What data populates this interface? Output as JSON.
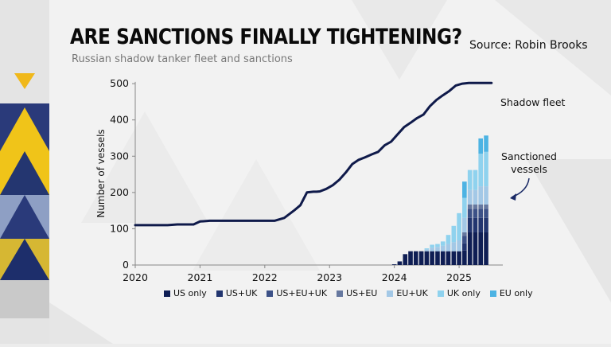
{
  "header": {
    "title": "ARE SANCTIONS FINALLY TIGHTENING?",
    "subtitle": "Russian shadow tanker fleet and sanctions",
    "source": "Source: Robin Brooks"
  },
  "chart_data": {
    "type": "line+stacked-bar",
    "title": "ARE SANCTIONS FINALLY TIGHTENING?",
    "subtitle": "Russian shadow tanker fleet and sanctions",
    "ylabel": "Number of vessels",
    "xlabel": "",
    "ylim": [
      0,
      520
    ],
    "xlim": [
      2020,
      2025.65
    ],
    "y_ticks": [
      "0",
      "100",
      "200",
      "300",
      "400",
      "500"
    ],
    "x_ticks": [
      "2020",
      "2021",
      "2022",
      "2023",
      "2024",
      "2025"
    ],
    "line": {
      "name": "Shadow fleet",
      "label": "Shadow fleet",
      "x": [
        2020.0,
        2020.25,
        2020.5,
        2020.65,
        2020.9,
        2021.0,
        2021.15,
        2021.5,
        2021.9,
        2022.15,
        2022.3,
        2022.45,
        2022.55,
        2022.65,
        2022.75,
        2022.8,
        2022.85,
        2022.95,
        2023.05,
        2023.15,
        2023.25,
        2023.35,
        2023.45,
        2023.55,
        2023.65,
        2023.75,
        2023.85,
        2023.95,
        2024.05,
        2024.15,
        2024.25,
        2024.35,
        2024.45,
        2024.55,
        2024.65,
        2024.75,
        2024.85,
        2024.95,
        2025.05,
        2025.15,
        2025.25,
        2025.35,
        2025.5
      ],
      "values": [
        110,
        110,
        110,
        112,
        112,
        120,
        122,
        122,
        122,
        122,
        130,
        150,
        165,
        200,
        202,
        202,
        203,
        210,
        220,
        235,
        255,
        278,
        290,
        297,
        305,
        312,
        330,
        340,
        360,
        380,
        392,
        405,
        415,
        438,
        455,
        468,
        480,
        495,
        500,
        502,
        502,
        502,
        502
      ]
    },
    "bars": {
      "label": "Sanctioned vessels",
      "x": [
        2024.0,
        2024.083,
        2024.167,
        2024.25,
        2024.333,
        2024.417,
        2024.5,
        2024.583,
        2024.667,
        2024.75,
        2024.833,
        2024.917,
        2025.0,
        2025.083,
        2025.167,
        2025.25,
        2025.333,
        2025.417
      ],
      "series": [
        {
          "name": "US only",
          "color": "#0f1e54",
          "values": [
            2,
            10,
            30,
            38,
            38,
            38,
            38,
            38,
            38,
            38,
            38,
            38,
            38,
            40,
            90,
            90,
            90,
            90
          ]
        },
        {
          "name": "US+UK",
          "color": "#22356f",
          "values": [
            0,
            0,
            0,
            0,
            0,
            0,
            0,
            0,
            0,
            0,
            0,
            0,
            0,
            20,
            40,
            40,
            40,
            40
          ]
        },
        {
          "name": "US+EU+UK",
          "color": "#3c5187",
          "values": [
            0,
            0,
            0,
            0,
            0,
            0,
            0,
            0,
            0,
            0,
            0,
            0,
            0,
            20,
            25,
            25,
            25,
            25
          ]
        },
        {
          "name": "US+EU",
          "color": "#66789f",
          "values": [
            0,
            0,
            0,
            0,
            0,
            0,
            0,
            0,
            0,
            0,
            0,
            0,
            0,
            10,
            12,
            12,
            12,
            12
          ]
        },
        {
          "name": "EU+UK",
          "color": "#a3c8e6",
          "values": [
            0,
            0,
            0,
            0,
            0,
            0,
            5,
            10,
            12,
            15,
            20,
            25,
            30,
            40,
            40,
            40,
            50,
            50
          ]
        },
        {
          "name": "UK only",
          "color": "#8fd2ee",
          "values": [
            0,
            0,
            0,
            0,
            0,
            0,
            3,
            8,
            8,
            12,
            25,
            45,
            75,
            55,
            55,
            55,
            90,
            95
          ]
        },
        {
          "name": "EU only",
          "color": "#4db3e3",
          "values": [
            0,
            0,
            0,
            0,
            0,
            0,
            0,
            0,
            0,
            0,
            0,
            0,
            0,
            45,
            0,
            0,
            42,
            45
          ]
        }
      ]
    },
    "annotations": [
      "Shadow fleet",
      "Sanctioned",
      "vessels"
    ]
  }
}
